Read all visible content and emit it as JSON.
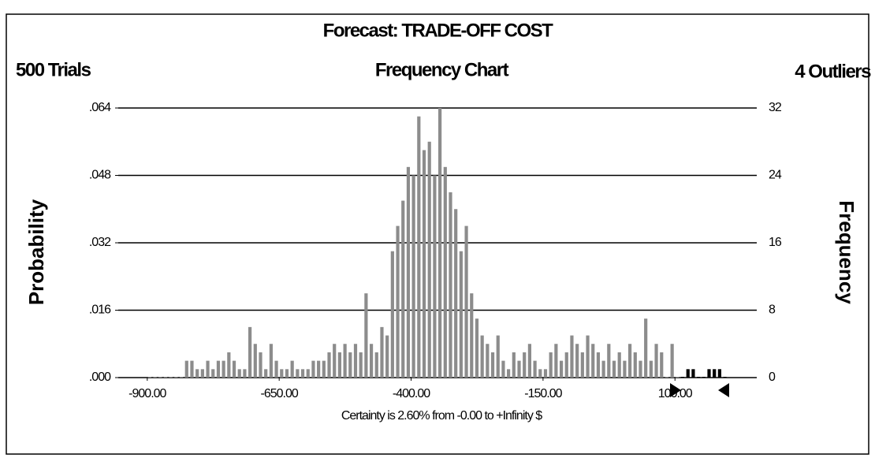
{
  "chart_data": {
    "type": "histogram",
    "title": "Forecast: TRADE-OFF COST",
    "subtitle": "Frequency Chart",
    "trials": "500 Trials",
    "outliers": "4 Outliers",
    "ylabel": "Probability",
    "y2label": "Frequency",
    "xlabel": "Certainty is 2.60% from -0.00 to +Infinity $",
    "bins": [
      -900,
      -890,
      -880,
      -870,
      -860,
      -850,
      -840,
      -830,
      -820,
      -810,
      -800,
      -790,
      -780,
      -770,
      -760,
      -750,
      -740,
      -730,
      -720,
      -710,
      -700,
      -690,
      -680,
      -670,
      -660,
      -650,
      -640,
      -630,
      -620,
      -610,
      -600,
      -590,
      -580,
      -570,
      -560,
      -550,
      -540,
      -530,
      -520,
      -510,
      -500,
      -490,
      -480,
      -470,
      -460,
      -450,
      -440,
      -430,
      -420,
      -410,
      -400,
      -390,
      -380,
      -370,
      -360,
      -350,
      -340,
      -330,
      -320,
      -310,
      -300,
      -290,
      -280,
      -270,
      -260,
      -250,
      -240,
      -230,
      -220,
      -210,
      -200,
      -190,
      -180,
      -170,
      -160,
      -150,
      -140,
      -130,
      -120,
      -110,
      -100,
      -90,
      -80,
      -70,
      -60,
      -50,
      -40,
      -30,
      -20,
      -10,
      0,
      10,
      20,
      30,
      40,
      50,
      60,
      70,
      80,
      90,
      100,
      110,
      120,
      130,
      140,
      150,
      160,
      170,
      180,
      190,
      200
    ],
    "values": [
      0,
      0,
      0,
      0,
      0,
      0,
      0,
      2,
      2,
      1,
      1,
      2,
      1,
      2,
      2,
      3,
      2,
      1,
      1,
      6,
      4,
      3,
      1,
      4,
      2,
      1,
      1,
      2,
      1,
      1,
      1,
      2,
      2,
      2,
      3,
      4,
      3,
      4,
      3,
      4,
      3,
      10,
      4,
      3,
      6,
      5,
      15,
      18,
      21,
      25,
      24,
      31,
      27,
      28,
      24,
      32,
      25,
      22,
      20,
      15,
      18,
      10,
      7,
      5,
      4,
      3,
      5,
      2,
      1,
      3,
      2,
      3,
      4,
      2,
      1,
      1,
      3,
      4,
      2,
      3,
      5,
      4,
      3,
      5,
      4,
      3,
      2,
      4,
      2,
      3,
      2,
      4,
      3,
      2,
      7,
      2,
      4,
      3,
      0,
      4,
      0,
      0,
      1,
      1,
      0,
      0,
      1,
      1,
      1,
      0
    ],
    "color": "#8c8c8c",
    "xlim": [
      -955,
      255
    ],
    "xticks": [
      {
        "value": -900,
        "label": "-900.00"
      },
      {
        "value": -650,
        "label": "-650.00"
      },
      {
        "value": -400,
        "label": "-400.00"
      },
      {
        "value": -150,
        "label": "-150.00"
      },
      {
        "value": 100,
        "label": "100.00"
      }
    ],
    "ylim": [
      0,
      0.064
    ],
    "yticks": [
      {
        "value": 0,
        "label": ".000"
      },
      {
        "value": 0.016,
        "label": ".016"
      },
      {
        "value": 0.032,
        "label": ".032"
      },
      {
        "value": 0.048,
        "label": ".048"
      },
      {
        "value": 0.064,
        "label": ".064"
      }
    ],
    "y2lim": [
      0,
      32
    ],
    "y2ticks": [
      0,
      8,
      16,
      24,
      32
    ],
    "grid": true
  }
}
